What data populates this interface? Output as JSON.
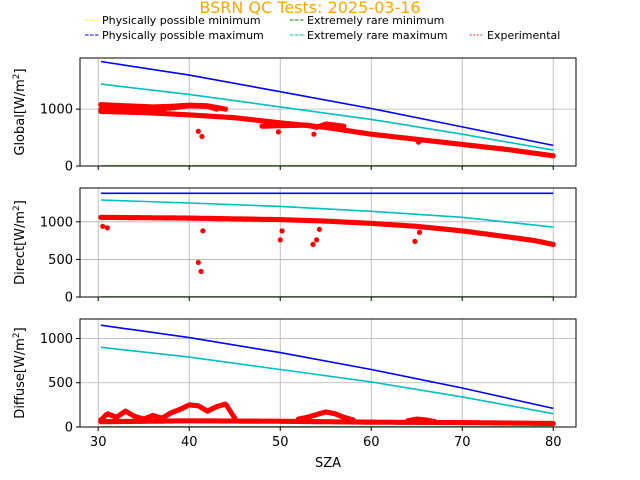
{
  "title": "BSRN QC Tests: 2025-03-16",
  "title_color": "#ffa500",
  "xlabel": "SZA",
  "legend": [
    {
      "label": "Physically possible minimum",
      "color": "#ffff00",
      "style": "dashed"
    },
    {
      "label": "Physically possible maximum",
      "color": "#0000ff",
      "style": "dashed"
    },
    {
      "label": "Extremely rare minimum",
      "color": "#008000",
      "style": "dashed"
    },
    {
      "label": "Extremely rare maximum",
      "color": "#00bfbf",
      "style": "dashed"
    },
    {
      "label": "Experimental",
      "color": "#ff0000",
      "style": "dotted"
    }
  ],
  "chart_data": [
    {
      "type": "line",
      "ylabel": "Global[W/m$^2$]",
      "ylabel_text": "Global[W/m",
      "ylabel_sup": "2",
      "ylabel_close": "]",
      "xlim": [
        28,
        82.5
      ],
      "ylim": [
        0,
        1900
      ],
      "xticks": [
        30,
        40,
        50,
        60,
        70,
        80
      ],
      "xtick_labels": [
        "30",
        "40",
        "50",
        "60",
        "70",
        "80"
      ],
      "show_xtick_labels": false,
      "yticks": [
        0,
        1000
      ],
      "ytick_labels": [
        "0",
        "1000"
      ],
      "grid": true,
      "series": [
        {
          "name": "Physically possible minimum",
          "color": "#ffff00",
          "x": [
            30.3,
            80
          ],
          "y": [
            -4,
            -4
          ]
        },
        {
          "name": "Physically possible maximum",
          "color": "#0000ff",
          "x": [
            30.3,
            40,
            50,
            60,
            70,
            80
          ],
          "y": [
            1838,
            1600,
            1308,
            1011,
            688,
            362
          ]
        },
        {
          "name": "Extremely rare minimum",
          "color": "#008000",
          "x": [
            30.3,
            80
          ],
          "y": [
            0,
            0
          ]
        },
        {
          "name": "Extremely rare maximum",
          "color": "#00bfbf",
          "x": [
            30.3,
            40,
            50,
            60,
            70,
            80
          ],
          "y": [
            1440,
            1260,
            1040,
            820,
            560,
            280
          ]
        }
      ],
      "scatter": {
        "name": "Experimental",
        "color": "#ff0000",
        "curves": [
          {
            "x": [
              30.3,
              35,
              40,
              45,
              50,
              55,
              60,
              65,
              70,
              75,
              80
            ],
            "y": [
              960,
              940,
              900,
              850,
              760,
              680,
              560,
              470,
              380,
              290,
              180
            ]
          },
          {
            "x": [
              30.3,
              33,
              36,
              38,
              40,
              42,
              43
            ],
            "y": [
              1000,
              1010,
              1000,
              1020,
              1060,
              1050,
              1000
            ]
          },
          {
            "x": [
              30.3,
              33,
              36,
              38,
              40,
              42,
              44
            ],
            "y": [
              1080,
              1060,
              1040,
              1050,
              1070,
              1060,
              1000
            ]
          },
          {
            "x": [
              48,
              50,
              53,
              54,
              55,
              56,
              57
            ],
            "y": [
              700,
              710,
              720,
              680,
              740,
              720,
              700
            ]
          }
        ],
        "outliers": [
          {
            "x": 41,
            "y": 610
          },
          {
            "x": 41.4,
            "y": 520
          },
          {
            "x": 49.8,
            "y": 600
          },
          {
            "x": 53.7,
            "y": 560
          },
          {
            "x": 65.2,
            "y": 420
          }
        ]
      }
    },
    {
      "type": "line",
      "ylabel": "Direct[W/m$^2$]",
      "ylabel_text": "Direct[W/m",
      "ylabel_sup": "2",
      "ylabel_close": "]",
      "xlim": [
        28,
        82.5
      ],
      "ylim": [
        0,
        1450
      ],
      "xticks": [
        30,
        40,
        50,
        60,
        70,
        80
      ],
      "xtick_labels": [
        "30",
        "40",
        "50",
        "60",
        "70",
        "80"
      ],
      "show_xtick_labels": false,
      "yticks": [
        0,
        500,
        1000
      ],
      "ytick_labels": [
        "0",
        "500",
        "1000"
      ],
      "grid": true,
      "series": [
        {
          "name": "Physically possible minimum",
          "color": "#ffff00",
          "x": [
            30.3,
            80
          ],
          "y": [
            -4,
            -4
          ]
        },
        {
          "name": "Physically possible maximum",
          "color": "#0000ff",
          "x": [
            30.3,
            80
          ],
          "y": [
            1380,
            1380
          ]
        },
        {
          "name": "Extremely rare minimum",
          "color": "#008000",
          "x": [
            30.3,
            80
          ],
          "y": [
            0,
            0
          ]
        },
        {
          "name": "Extremely rare maximum",
          "color": "#00bfbf",
          "x": [
            30.3,
            40,
            50,
            60,
            70,
            80
          ],
          "y": [
            1290,
            1250,
            1205,
            1140,
            1060,
            930
          ]
        }
      ],
      "scatter": {
        "name": "Experimental",
        "color": "#ff0000",
        "curves": [
          {
            "x": [
              30.3,
              40,
              50,
              55,
              60,
              65,
              70,
              75,
              78,
              80
            ],
            "y": [
              1060,
              1050,
              1030,
              1010,
              980,
              940,
              880,
              800,
              750,
              700
            ]
          }
        ],
        "outliers": [
          {
            "x": 30.5,
            "y": 940
          },
          {
            "x": 31,
            "y": 920
          },
          {
            "x": 41,
            "y": 460
          },
          {
            "x": 41.3,
            "y": 340
          },
          {
            "x": 41.5,
            "y": 880
          },
          {
            "x": 50,
            "y": 760
          },
          {
            "x": 50.2,
            "y": 880
          },
          {
            "x": 53.6,
            "y": 700
          },
          {
            "x": 54,
            "y": 760
          },
          {
            "x": 54.3,
            "y": 900
          },
          {
            "x": 64.8,
            "y": 740
          },
          {
            "x": 65.3,
            "y": 860
          }
        ]
      }
    },
    {
      "type": "line",
      "ylabel": "Diffuse[W/m$^2$]",
      "ylabel_text": "Diffuse[W/m",
      "ylabel_sup": "2",
      "ylabel_close": "]",
      "xlim": [
        28,
        82.5
      ],
      "ylim": [
        0,
        1220
      ],
      "xticks": [
        30,
        40,
        50,
        60,
        70,
        80
      ],
      "xtick_labels": [
        "30",
        "40",
        "50",
        "60",
        "70",
        "80"
      ],
      "show_xtick_labels": true,
      "yticks": [
        0,
        500,
        1000
      ],
      "ytick_labels": [
        "0",
        "500",
        "1000"
      ],
      "grid": true,
      "series": [
        {
          "name": "Physically possible minimum",
          "color": "#ffff00",
          "x": [
            30.3,
            80
          ],
          "y": [
            -4,
            -4
          ]
        },
        {
          "name": "Physically possible maximum",
          "color": "#0000ff",
          "x": [
            30.3,
            40,
            50,
            60,
            70,
            80
          ],
          "y": [
            1150,
            1010,
            840,
            650,
            440,
            210
          ]
        },
        {
          "name": "Extremely rare minimum",
          "color": "#008000",
          "x": [
            30.3,
            80
          ],
          "y": [
            0,
            0
          ]
        },
        {
          "name": "Extremely rare maximum",
          "color": "#00bfbf",
          "x": [
            30.3,
            40,
            50,
            60,
            70,
            80
          ],
          "y": [
            900,
            790,
            650,
            510,
            340,
            150
          ]
        }
      ],
      "scatter": {
        "name": "Experimental",
        "color": "#ff0000",
        "curves": [
          {
            "x": [
              30.3,
              40,
              50,
              60,
              70,
              80
            ],
            "y": [
              60,
              70,
              65,
              55,
              50,
              40
            ]
          },
          {
            "x": [
              30.3,
              31,
              32,
              33,
              34,
              35,
              36,
              37,
              38,
              39,
              40,
              41,
              42,
              43,
              44,
              45
            ],
            "y": [
              80,
              150,
              110,
              180,
              120,
              90,
              130,
              100,
              160,
              200,
              250,
              240,
              180,
              230,
              260,
              100
            ]
          },
          {
            "x": [
              52,
              53,
              54,
              55,
              56,
              57,
              58
            ],
            "y": [
              90,
              110,
              140,
              170,
              150,
              110,
              80
            ]
          },
          {
            "x": [
              64,
              65,
              66,
              67
            ],
            "y": [
              70,
              90,
              80,
              60
            ]
          }
        ],
        "outliers": []
      }
    }
  ]
}
